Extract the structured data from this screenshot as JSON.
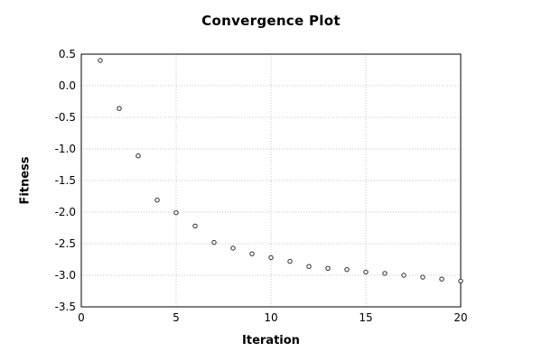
{
  "chart_data": {
    "type": "scatter",
    "title": "Convergence Plot",
    "xlabel": "Iteration",
    "ylabel": "Fitness",
    "xlim": [
      0,
      20
    ],
    "ylim": [
      -3.5,
      0.5
    ],
    "x_ticks": [
      0,
      5,
      10,
      15,
      20
    ],
    "x_tick_labels": [
      "0",
      "5",
      "10",
      "15",
      "20"
    ],
    "y_ticks": [
      0.5,
      0.0,
      -0.5,
      -1.0,
      -1.5,
      -2.0,
      -2.5,
      -3.0,
      -3.5
    ],
    "y_tick_labels": [
      "0.5",
      "0.0",
      "-0.5",
      "-1.0",
      "-1.5",
      "-2.0",
      "-2.5",
      "-3.0",
      "-3.5"
    ],
    "grid": true,
    "legend": "none",
    "marker": "open-circle",
    "x": [
      1,
      2,
      3,
      4,
      5,
      6,
      7,
      8,
      9,
      10,
      11,
      12,
      13,
      14,
      15,
      16,
      17,
      18,
      19,
      20
    ],
    "y": [
      0.4,
      -0.36,
      -1.11,
      -1.81,
      -2.01,
      -2.22,
      -2.48,
      -2.57,
      -2.66,
      -2.72,
      -2.78,
      -2.86,
      -2.89,
      -2.91,
      -2.95,
      -2.97,
      -3.0,
      -3.03,
      -3.06,
      -3.09
    ],
    "colors": {
      "background": "#ffffff",
      "axis": "#000000",
      "grid": "#c6c6c6",
      "marker_stroke": "#2b2b2b",
      "marker_fill": "#ffffff",
      "text": "#000000"
    }
  }
}
